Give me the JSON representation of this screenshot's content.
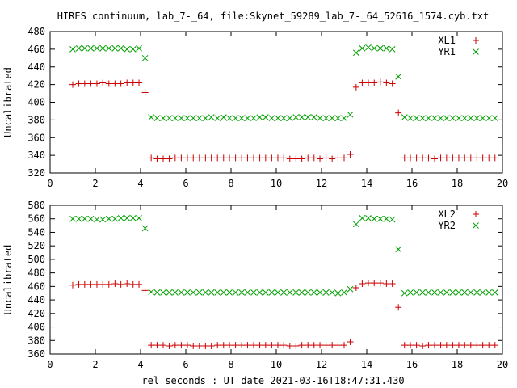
{
  "title": "HIRES continuum, lab_7-_64, file:Skynet_59289_lab_7-_64_52616_1574.cyb.txt",
  "xlabel": "rel seconds : UT date 2021-03-16T18:47:31.430",
  "colors": {
    "red": "#cc0000",
    "green": "#00a000",
    "axis": "#000000"
  },
  "chart_data": [
    {
      "type": "scatter",
      "ylabel": "Uncalibrated",
      "xlim": [
        0,
        20
      ],
      "ylim": [
        320,
        480
      ],
      "xticks": [
        0,
        2,
        4,
        6,
        8,
        10,
        12,
        14,
        16,
        18,
        20
      ],
      "yticks": [
        320,
        340,
        360,
        380,
        400,
        420,
        440,
        460,
        480
      ],
      "legend": "top-right",
      "series": [
        {
          "name": "XL1",
          "marker": "plus",
          "color": "#cc0000",
          "x": [
            1.0,
            1.27,
            1.53,
            1.8,
            2.07,
            2.33,
            2.6,
            2.87,
            3.13,
            3.4,
            3.67,
            3.93,
            4.2,
            4.47,
            4.73,
            5.0,
            5.27,
            5.53,
            5.8,
            6.07,
            6.33,
            6.6,
            6.87,
            7.13,
            7.4,
            7.67,
            7.93,
            8.2,
            8.47,
            8.73,
            9.0,
            9.27,
            9.53,
            9.8,
            10.07,
            10.33,
            10.6,
            10.87,
            11.13,
            11.4,
            11.67,
            11.93,
            12.2,
            12.47,
            12.73,
            13.0,
            13.27,
            13.53,
            13.8,
            14.07,
            14.33,
            14.6,
            14.87,
            15.13,
            15.4,
            15.67,
            15.93,
            16.2,
            16.47,
            16.73,
            17.0,
            17.27,
            17.53,
            17.8,
            18.07,
            18.33,
            18.6,
            18.87,
            19.13,
            19.4,
            19.67
          ],
          "y": [
            420,
            421,
            421,
            421,
            421,
            422,
            421,
            421,
            421,
            422,
            422,
            422,
            411,
            337,
            336,
            336,
            336,
            337,
            337,
            337,
            337,
            337,
            337,
            337,
            337,
            337,
            337,
            337,
            337,
            337,
            337,
            337,
            337,
            337,
            337,
            337,
            336,
            336,
            336,
            337,
            337,
            336,
            337,
            336,
            337,
            337,
            341,
            417,
            422,
            422,
            422,
            423,
            422,
            421,
            388,
            337,
            337,
            337,
            337,
            337,
            336,
            337,
            337,
            337,
            337,
            337,
            337,
            337,
            337,
            337,
            337
          ],
          "xs": [
            1.0,
            1.27,
            1.53,
            1.8,
            2.07,
            2.33,
            2.6,
            2.87,
            3.13,
            3.4,
            3.67,
            3.93,
            4.2,
            4.47,
            4.73,
            5.0,
            5.27,
            5.53,
            5.8,
            6.07,
            6.33,
            6.6,
            6.87,
            7.13,
            7.4,
            7.67,
            7.93,
            8.2,
            8.47,
            8.73,
            9.0,
            9.27,
            9.53,
            9.8,
            10.07,
            10.33,
            10.6,
            10.87,
            11.13,
            11.4,
            11.67,
            11.93,
            12.2,
            12.47,
            12.73,
            13.0,
            13.53,
            13.8,
            14.07,
            14.33,
            14.6,
            14.87,
            15.13,
            15.4,
            15.93,
            16.47,
            16.73,
            17.0,
            17.27,
            17.53,
            17.8,
            18.07,
            18.33,
            18.6,
            18.87,
            19.13,
            19.4,
            19.67,
            19.93,
            20.0,
            20.0
          ]
        },
        {
          "name": "YR1",
          "marker": "cross",
          "color": "#00a000",
          "x": [
            1.0,
            1.27,
            1.53,
            1.8,
            2.07,
            2.33,
            2.6,
            2.87,
            3.13,
            3.4,
            3.67,
            3.93,
            4.2,
            4.47,
            4.73,
            5.0,
            5.27,
            5.53,
            5.8,
            6.07,
            6.33,
            6.6,
            6.87,
            7.13,
            7.4,
            7.67,
            7.93,
            8.2,
            8.47,
            8.73,
            9.0,
            9.27,
            9.53,
            9.8,
            10.07,
            10.33,
            10.6,
            10.87,
            11.13,
            11.4,
            11.67,
            11.93,
            12.2,
            12.47,
            12.73,
            13.0,
            13.27,
            13.53,
            13.8,
            14.07,
            14.33,
            14.6,
            14.87,
            15.13,
            15.4,
            15.67,
            15.93,
            16.2,
            16.47,
            16.73,
            17.0,
            17.27,
            17.53,
            17.8,
            18.07,
            18.33,
            18.6,
            18.87,
            19.13,
            19.4,
            19.67
          ],
          "y": [
            460,
            461,
            461,
            461,
            461,
            461,
            461,
            461,
            461,
            460,
            460,
            461,
            450,
            383,
            382,
            382,
            382,
            382,
            382,
            382,
            382,
            382,
            382,
            383,
            382,
            383,
            382,
            382,
            382,
            382,
            382,
            383,
            383,
            382,
            382,
            382,
            382,
            383,
            383,
            383,
            383,
            382,
            382,
            382,
            382,
            382,
            386,
            456,
            461,
            462,
            461,
            461,
            461,
            460,
            429,
            383,
            382,
            382,
            382,
            382,
            382,
            382,
            382,
            382,
            382,
            382,
            382,
            382,
            382,
            382,
            382
          ]
        }
      ]
    },
    {
      "type": "scatter",
      "ylabel": "Uncalibrated",
      "xlim": [
        0,
        20
      ],
      "ylim": [
        360,
        580
      ],
      "xticks": [
        0,
        2,
        4,
        6,
        8,
        10,
        12,
        14,
        16,
        18,
        20
      ],
      "yticks": [
        360,
        380,
        400,
        420,
        440,
        460,
        480,
        500,
        520,
        540,
        560,
        580
      ],
      "legend": "top-right",
      "series": [
        {
          "name": "XL2",
          "marker": "plus",
          "color": "#cc0000",
          "x": [
            1.0,
            1.27,
            1.53,
            1.8,
            2.07,
            2.33,
            2.6,
            2.87,
            3.13,
            3.4,
            3.67,
            3.93,
            4.2,
            4.47,
            4.73,
            5.0,
            5.27,
            5.53,
            5.8,
            6.07,
            6.33,
            6.6,
            6.87,
            7.13,
            7.4,
            7.67,
            7.93,
            8.2,
            8.47,
            8.73,
            9.0,
            9.27,
            9.53,
            9.8,
            10.07,
            10.33,
            10.6,
            10.87,
            11.13,
            11.4,
            11.67,
            11.93,
            12.2,
            12.47,
            12.73,
            13.0,
            13.27,
            13.53,
            13.8,
            14.07,
            14.33,
            14.6,
            14.87,
            15.13,
            15.4,
            15.67,
            15.93,
            16.2,
            16.47,
            16.73,
            17.0,
            17.27,
            17.53,
            17.8,
            18.07,
            18.33,
            18.6,
            18.87,
            19.13,
            19.4,
            19.67
          ],
          "y": [
            462,
            463,
            463,
            463,
            463,
            463,
            463,
            464,
            463,
            464,
            463,
            463,
            454,
            373,
            373,
            373,
            372,
            373,
            373,
            373,
            372,
            372,
            372,
            372,
            373,
            373,
            373,
            373,
            373,
            373,
            373,
            373,
            373,
            373,
            373,
            373,
            372,
            372,
            373,
            373,
            373,
            373,
            373,
            373,
            373,
            373,
            378,
            458,
            464,
            465,
            465,
            465,
            464,
            464,
            429,
            373,
            373,
            373,
            372,
            373,
            373,
            373,
            373,
            373,
            373,
            373,
            373,
            373,
            373,
            373,
            373
          ]
        },
        {
          "name": "YR2",
          "marker": "cross",
          "color": "#00a000",
          "x": [
            1.0,
            1.27,
            1.53,
            1.8,
            2.07,
            2.33,
            2.6,
            2.87,
            3.13,
            3.4,
            3.67,
            3.93,
            4.2,
            4.47,
            4.73,
            5.0,
            5.27,
            5.53,
            5.8,
            6.07,
            6.33,
            6.6,
            6.87,
            7.13,
            7.4,
            7.67,
            7.93,
            8.2,
            8.47,
            8.73,
            9.0,
            9.27,
            9.53,
            9.8,
            10.07,
            10.33,
            10.6,
            10.87,
            11.13,
            11.4,
            11.67,
            11.93,
            12.2,
            12.47,
            12.73,
            13.0,
            13.27,
            13.53,
            13.8,
            14.07,
            14.33,
            14.6,
            14.87,
            15.13,
            15.4,
            15.67,
            15.93,
            16.2,
            16.47,
            16.73,
            17.0,
            17.27,
            17.53,
            17.8,
            18.07,
            18.33,
            18.6,
            18.87,
            19.13,
            19.4,
            19.67
          ],
          "y": [
            560,
            560,
            560,
            560,
            559,
            559,
            560,
            560,
            561,
            561,
            561,
            561,
            546,
            452,
            451,
            451,
            451,
            451,
            451,
            451,
            451,
            451,
            451,
            451,
            451,
            451,
            451,
            451,
            451,
            451,
            451,
            451,
            451,
            451,
            451,
            451,
            451,
            451,
            451,
            451,
            451,
            451,
            451,
            451,
            450,
            451,
            456,
            552,
            561,
            561,
            560,
            560,
            560,
            559,
            515,
            450,
            451,
            451,
            451,
            451,
            451,
            451,
            451,
            451,
            451,
            451,
            451,
            451,
            451,
            451,
            451
          ]
        }
      ]
    }
  ]
}
